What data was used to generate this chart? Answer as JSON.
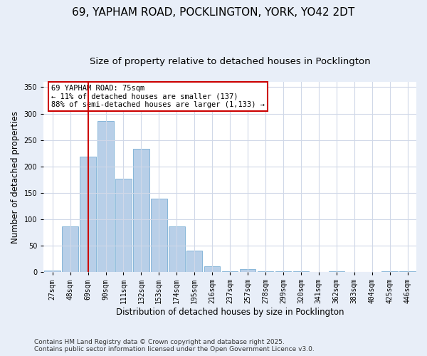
{
  "title_line1": "69, YAPHAM ROAD, POCKLINGTON, YORK, YO42 2DT",
  "title_line2": "Size of property relative to detached houses in Pocklington",
  "xlabel": "Distribution of detached houses by size in Pocklington",
  "ylabel": "Number of detached properties",
  "categories": [
    "27sqm",
    "48sqm",
    "69sqm",
    "90sqm",
    "111sqm",
    "132sqm",
    "153sqm",
    "174sqm",
    "195sqm",
    "216sqm",
    "237sqm",
    "257sqm",
    "278sqm",
    "299sqm",
    "320sqm",
    "341sqm",
    "362sqm",
    "383sqm",
    "404sqm",
    "425sqm",
    "446sqm"
  ],
  "values": [
    3,
    86,
    219,
    286,
    177,
    234,
    139,
    86,
    40,
    11,
    2,
    6,
    1,
    2,
    1,
    0,
    1,
    0,
    0,
    1,
    1
  ],
  "bar_color": "#b8cfe8",
  "bar_edge_color": "#7aafd4",
  "vline_x": 2,
  "vline_color": "#cc0000",
  "annotation_line1": "69 YAPHAM ROAD: 75sqm",
  "annotation_line2": "← 11% of detached houses are smaller (137)",
  "annotation_line3": "88% of semi-detached houses are larger (1,133) →",
  "annotation_box_color": "#ffffff",
  "annotation_box_edge": "#cc0000",
  "ylim": [
    0,
    360
  ],
  "yticks": [
    0,
    50,
    100,
    150,
    200,
    250,
    300,
    350
  ],
  "plot_bg_color": "#ffffff",
  "fig_bg_color": "#e8eef8",
  "footer_line1": "Contains HM Land Registry data © Crown copyright and database right 2025.",
  "footer_line2": "Contains public sector information licensed under the Open Government Licence v3.0.",
  "title_fontsize": 11,
  "subtitle_fontsize": 9.5,
  "axis_label_fontsize": 8.5,
  "tick_fontsize": 7,
  "annotation_fontsize": 7.5,
  "footer_fontsize": 6.5,
  "grid_color": "#d0d8e8"
}
